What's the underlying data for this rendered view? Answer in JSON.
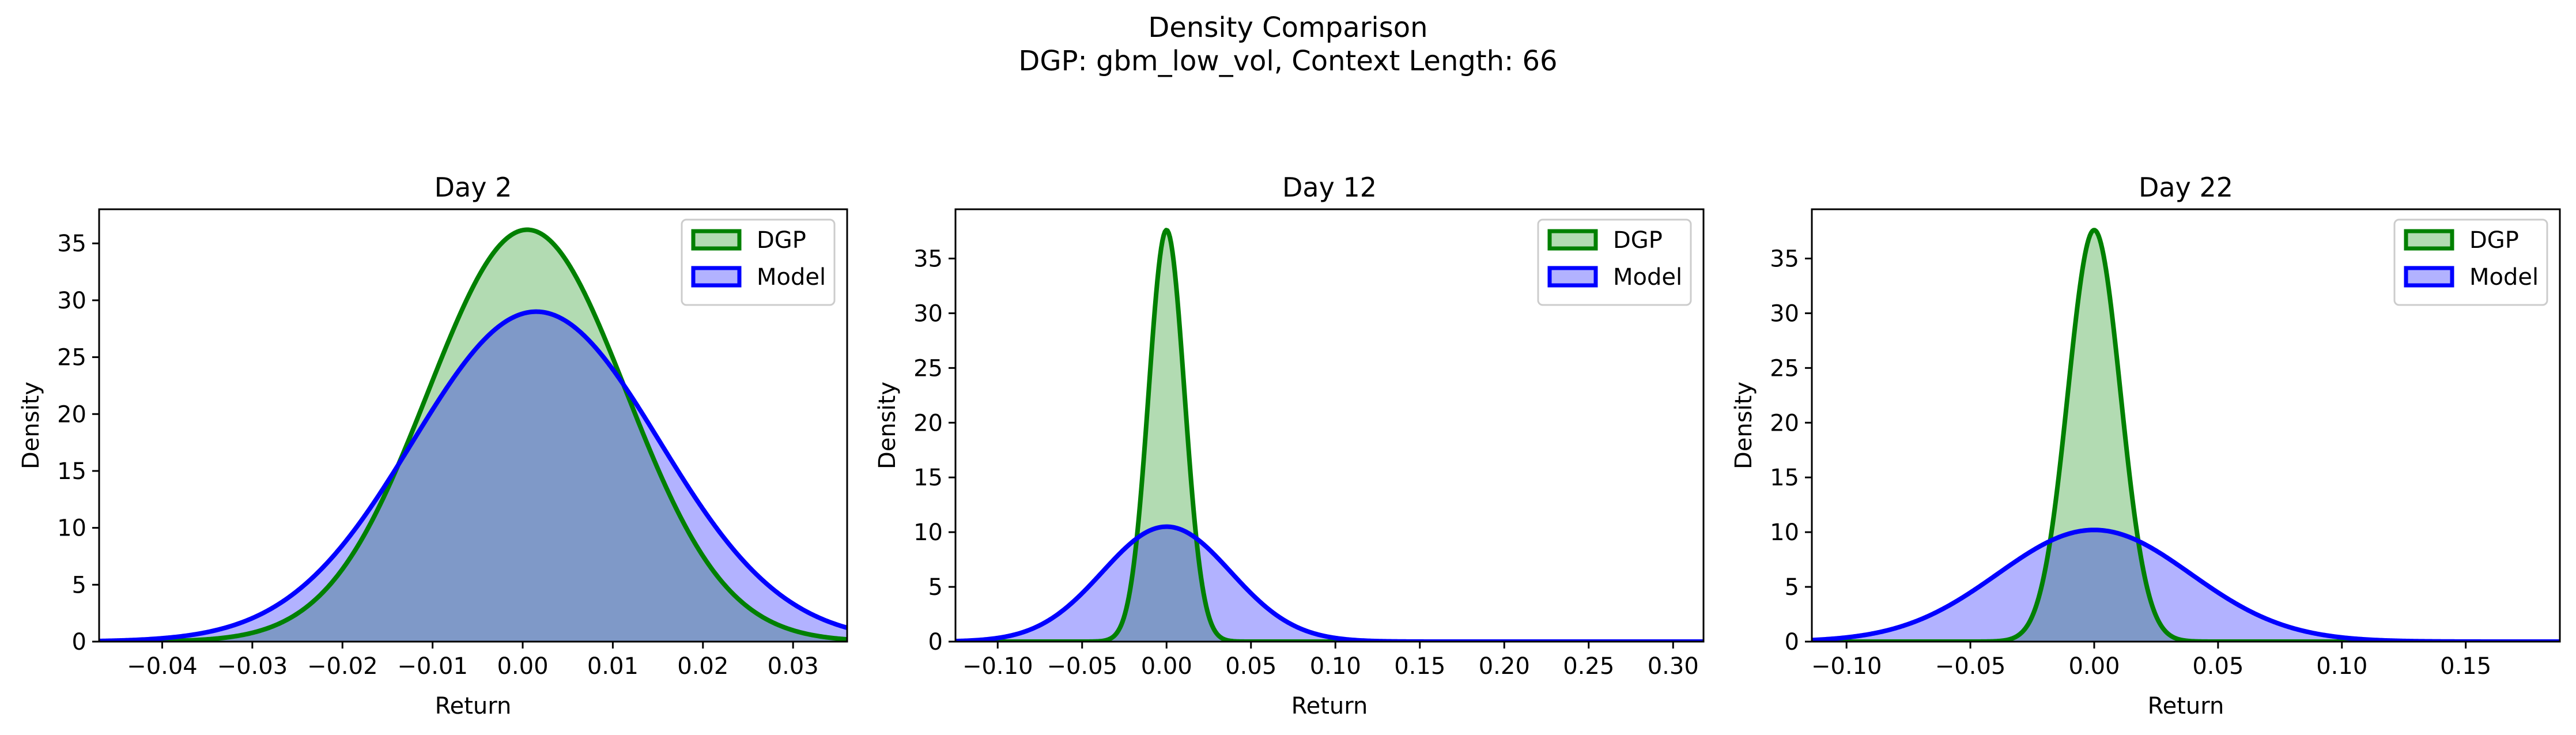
{
  "figure": {
    "suptitle": "Density Comparison",
    "subtitle": "DGP: gbm_low_vol, Context Length: 66"
  },
  "colors": {
    "dgp_line": "#008000",
    "dgp_fill": "#b2dbb2",
    "model_line": "#0000ff",
    "model_fill": "#b2b2ff",
    "overlap_fill": "#7f99c8"
  },
  "chart_data": [
    {
      "type": "area",
      "title": "Day 2",
      "xlabel": "Return",
      "ylabel": "Density",
      "xlim": [
        -0.047,
        0.036
      ],
      "ylim": [
        0,
        38
      ],
      "xticks": [
        -0.04,
        -0.03,
        -0.02,
        -0.01,
        0.0,
        0.01,
        0.02,
        0.03
      ],
      "xtick_labels": [
        "−0.04",
        "−0.03",
        "−0.02",
        "−0.01",
        "0.00",
        "0.01",
        "0.02",
        "0.03"
      ],
      "yticks": [
        0,
        5,
        10,
        15,
        20,
        25,
        30,
        35
      ],
      "ytick_labels": [
        "0",
        "5",
        "10",
        "15",
        "20",
        "25",
        "30",
        "35"
      ],
      "legend": {
        "position": "top-right"
      },
      "grid": false,
      "series": [
        {
          "name": "DGP",
          "distribution": "normal",
          "mean": 0.0005,
          "std": 0.011,
          "peak": 36.2
        },
        {
          "name": "Model",
          "distribution": "normal",
          "mean": 0.0015,
          "std": 0.0137,
          "peak": 29.0
        }
      ]
    },
    {
      "type": "area",
      "title": "Day 12",
      "xlabel": "Return",
      "ylabel": "Density",
      "xlim": [
        -0.125,
        0.318
      ],
      "ylim": [
        0,
        39.5
      ],
      "xticks": [
        -0.1,
        -0.05,
        0.0,
        0.05,
        0.1,
        0.15,
        0.2,
        0.25,
        0.3
      ],
      "xtick_labels": [
        "−0.10",
        "−0.05",
        "0.00",
        "0.05",
        "0.10",
        "0.15",
        "0.20",
        "0.25",
        "0.30"
      ],
      "yticks": [
        0,
        5,
        10,
        15,
        20,
        25,
        30,
        35
      ],
      "ytick_labels": [
        "0",
        "5",
        "10",
        "15",
        "20",
        "25",
        "30",
        "35"
      ],
      "legend": {
        "position": "top-right"
      },
      "grid": false,
      "series": [
        {
          "name": "DGP",
          "distribution": "normal",
          "mean": 0.0,
          "std": 0.0106,
          "peak": 37.6
        },
        {
          "name": "Model",
          "distribution": "normal",
          "mean": 0.0,
          "std": 0.038,
          "peak": 10.5
        }
      ]
    },
    {
      "type": "area",
      "title": "Day 22",
      "xlabel": "Return",
      "ylabel": "Density",
      "xlim": [
        -0.114,
        0.188
      ],
      "ylim": [
        0,
        39.5
      ],
      "xticks": [
        -0.1,
        -0.05,
        0.0,
        0.05,
        0.1,
        0.15
      ],
      "xtick_labels": [
        "−0.10",
        "−0.05",
        "0.00",
        "0.05",
        "0.10",
        "0.15"
      ],
      "yticks": [
        0,
        5,
        10,
        15,
        20,
        25,
        30,
        35
      ],
      "ytick_labels": [
        "0",
        "5",
        "10",
        "15",
        "20",
        "25",
        "30",
        "35"
      ],
      "legend": {
        "position": "top-right"
      },
      "grid": false,
      "series": [
        {
          "name": "DGP",
          "distribution": "normal",
          "mean": 0.0,
          "std": 0.0106,
          "peak": 37.6
        },
        {
          "name": "Model",
          "distribution": "normal",
          "mean": 0.0,
          "std": 0.039,
          "peak": 10.2
        }
      ]
    }
  ]
}
